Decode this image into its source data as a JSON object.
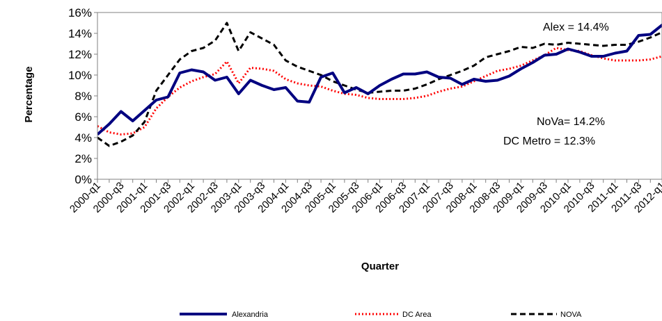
{
  "chart_data": {
    "type": "line",
    "title": "",
    "xlabel": "Quarter",
    "ylabel": "Percentage",
    "ylim": [
      0,
      16
    ],
    "y_ticks": [
      "0%",
      "2%",
      "4%",
      "6%",
      "8%",
      "10%",
      "12%",
      "14%",
      "16%"
    ],
    "x": [
      "2000-q1",
      "2000-q2",
      "2000-q3",
      "2000-q4",
      "2001-q1",
      "2001-q2",
      "2001-q3",
      "2001-q4",
      "2002-q1",
      "2002-q2",
      "2002-q3",
      "2002-q4",
      "2003-q1",
      "2003-q2",
      "2003-q3",
      "2003-q4",
      "2004-q1",
      "2004-q2",
      "2004-q3",
      "2004-q4",
      "2005-q1",
      "2005-q2",
      "2005-q3",
      "2005-q4",
      "2006-q1",
      "2006-q2",
      "2006-q3",
      "2006-q4",
      "2007-q1",
      "2007-q2",
      "2007-q3",
      "2007-q4",
      "2008-q1",
      "2008-q2",
      "2008-q3",
      "2008-q4",
      "2009-q1",
      "2009-q2",
      "2009-q3",
      "2009-q4",
      "2010-q1",
      "2010-q2",
      "2010-q3",
      "2010-q4",
      "2011-q1",
      "2011-q2",
      "2011-q3",
      "2011-q4",
      "2012-q1",
      "2012-q2"
    ],
    "x_tick_labels": [
      "2000-q1",
      "2000-q3",
      "2001-q1",
      "2001-q3",
      "2002-q1",
      "2002-q3",
      "2003-q1",
      "2003-q3",
      "2004-q1",
      "2004-q3",
      "2005-q1",
      "2005-q3",
      "2006-q1",
      "2006-q3",
      "2007-q1",
      "2007-q3",
      "2008-q1",
      "2008-q3",
      "2009-q1",
      "2009-q3",
      "2010-q1",
      "2010-q3",
      "2011-q1",
      "2011-q3",
      "2012-q1"
    ],
    "series": [
      {
        "name": "Alexandria",
        "color": "#000080",
        "style": "solid",
        "values": [
          4.3,
          5.3,
          6.5,
          5.6,
          6.6,
          7.6,
          7.9,
          10.2,
          10.5,
          10.3,
          9.5,
          9.8,
          8.2,
          9.5,
          9.0,
          8.6,
          8.8,
          7.5,
          7.4,
          9.8,
          10.2,
          8.3,
          8.8,
          8.2,
          9.0,
          9.6,
          10.1,
          10.1,
          10.3,
          9.8,
          9.7,
          9.1,
          9.6,
          9.4,
          9.5,
          9.9,
          10.6,
          11.2,
          11.9,
          12.0,
          12.5,
          12.2,
          11.8,
          11.8,
          12.1,
          12.3,
          13.8,
          13.9,
          14.8,
          14.4
        ]
      },
      {
        "name": "DC Area",
        "color": "#ff0000",
        "style": "dotted",
        "values": [
          5.1,
          4.5,
          4.3,
          4.4,
          5.0,
          6.8,
          7.9,
          8.8,
          9.4,
          9.8,
          10.1,
          11.3,
          9.2,
          10.7,
          10.6,
          10.4,
          9.6,
          9.2,
          9.0,
          8.9,
          8.5,
          8.2,
          8.1,
          7.8,
          7.7,
          7.7,
          7.7,
          7.8,
          8.0,
          8.4,
          8.7,
          8.9,
          9.4,
          9.9,
          10.4,
          10.6,
          10.9,
          11.4,
          11.9,
          12.6,
          12.4,
          12.3,
          11.9,
          11.6,
          11.4,
          11.4,
          11.4,
          11.5,
          11.8,
          12.3
        ]
      },
      {
        "name": "NOVA",
        "color": "#000000",
        "style": "dashed",
        "values": [
          4.0,
          3.2,
          3.6,
          4.2,
          5.5,
          8.5,
          10.0,
          11.5,
          12.3,
          12.6,
          13.3,
          15.0,
          12.3,
          14.1,
          13.5,
          12.9,
          11.4,
          10.8,
          10.4,
          10.0,
          9.4,
          9.0,
          8.6,
          8.3,
          8.4,
          8.5,
          8.5,
          8.7,
          9.1,
          9.6,
          10.0,
          10.4,
          10.9,
          11.7,
          12.0,
          12.3,
          12.7,
          12.6,
          13.0,
          12.9,
          13.1,
          13.0,
          12.9,
          12.8,
          12.9,
          12.9,
          13.2,
          13.6,
          14.1,
          14.2
        ]
      }
    ],
    "annotations": [
      "Alex = 14.4%",
      "NoVa= 14.2%",
      "DC Metro = 12.3%"
    ],
    "grid": false,
    "legend_position": "bottom"
  }
}
